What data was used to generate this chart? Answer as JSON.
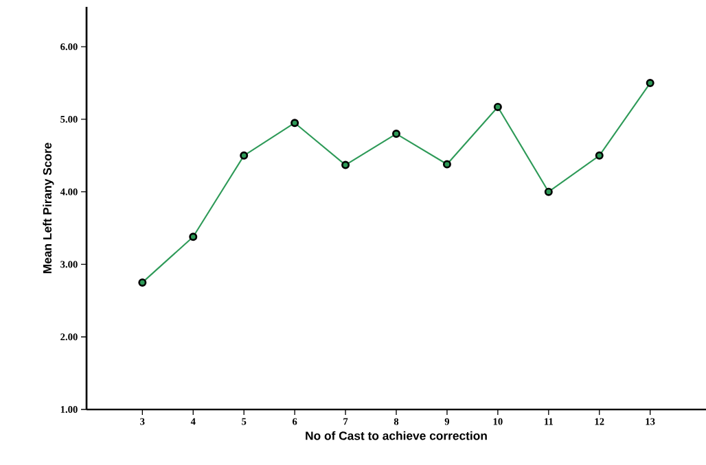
{
  "chart_data": {
    "type": "line",
    "xlabel": "No of Cast to achieve correction",
    "ylabel": "Mean Left Pirany Score",
    "x": [
      3,
      4,
      5,
      6,
      7,
      8,
      9,
      10,
      11,
      12,
      13
    ],
    "values": [
      2.75,
      3.38,
      4.5,
      4.95,
      4.37,
      4.8,
      4.38,
      5.17,
      4.0,
      4.5,
      5.5
    ],
    "color": "#2e9a58",
    "marker": "circle",
    "xlim": [
      1.9,
      14.1
    ],
    "ylim": [
      1,
      6.55
    ],
    "xticks": [
      3,
      4,
      5,
      6,
      7,
      8,
      9,
      10,
      11,
      12,
      13
    ],
    "yticks": [
      {
        "value": 1,
        "label": "1.00"
      },
      {
        "value": 2,
        "label": "2.00"
      },
      {
        "value": 3,
        "label": "3.00"
      },
      {
        "value": 4,
        "label": "4.00"
      },
      {
        "value": 5,
        "label": "5.00"
      },
      {
        "value": 6,
        "label": "6.00"
      }
    ]
  }
}
